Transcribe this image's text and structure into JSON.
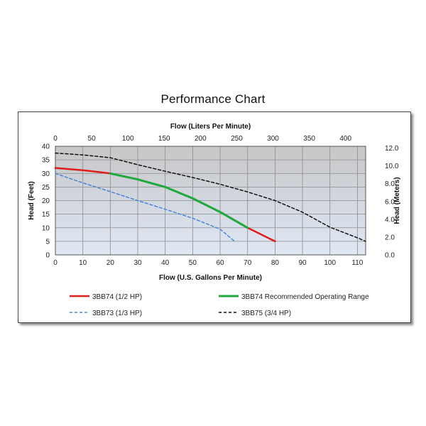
{
  "chart_data": {
    "type": "line",
    "title": "Performance Chart",
    "xlabel": "Flow (U.S. Gallons Per Minute)",
    "x2label": "Flow (Liters Per Minute)",
    "ylabel": "Head (Feet)",
    "y2label": "Head (Meters)",
    "xlim": [
      0,
      113
    ],
    "ylim": [
      0,
      40
    ],
    "x2lim": [
      0,
      427.7
    ],
    "y2lim": [
      0,
      12.2
    ],
    "xticks": [
      0,
      10,
      20,
      30,
      40,
      50,
      60,
      70,
      80,
      90,
      100,
      110
    ],
    "yticks": [
      0,
      5,
      10,
      15,
      20,
      25,
      30,
      35,
      40
    ],
    "x2ticks": [
      0,
      50,
      100,
      150,
      200,
      250,
      300,
      350,
      400
    ],
    "y2ticks": [
      "0.0",
      "2.0",
      "4.0",
      "6.0",
      "8.0",
      "10.0",
      "12.0"
    ],
    "grid": true,
    "legend_position": "bottom",
    "series": [
      {
        "name": "3BB74 (1/2 HP)",
        "color": "#e01b1b",
        "dash": "solid",
        "x": [
          0,
          10,
          20,
          30,
          40,
          50,
          60,
          70,
          80
        ],
        "y": [
          32,
          31.2,
          30,
          27.8,
          25,
          20.8,
          15.8,
          10,
          5
        ]
      },
      {
        "name": "3BB74 Recommended Operating Range",
        "color": "#1faa3c",
        "dash": "solid",
        "x": [
          20,
          30,
          40,
          50,
          60,
          70
        ],
        "y": [
          30,
          27.8,
          25,
          20.8,
          15.8,
          10
        ]
      },
      {
        "name": "3BB73 (1/3 HP)",
        "color": "#4a86d8",
        "dash": "dashed",
        "x": [
          0,
          10,
          20,
          30,
          40,
          50,
          60,
          65
        ],
        "y": [
          30,
          26.5,
          23.3,
          20,
          16.8,
          13.5,
          9.5,
          5.2
        ]
      },
      {
        "name": "3BB75 (3/4 HP)",
        "color": "#111111",
        "dash": "dashed",
        "x": [
          0,
          10,
          20,
          30,
          40,
          50,
          60,
          70,
          80,
          90,
          100,
          110,
          113
        ],
        "y": [
          37.5,
          36.8,
          35.8,
          33.2,
          30.8,
          28.5,
          26,
          23.2,
          20,
          15.7,
          10.2,
          6.3,
          5
        ]
      }
    ]
  }
}
